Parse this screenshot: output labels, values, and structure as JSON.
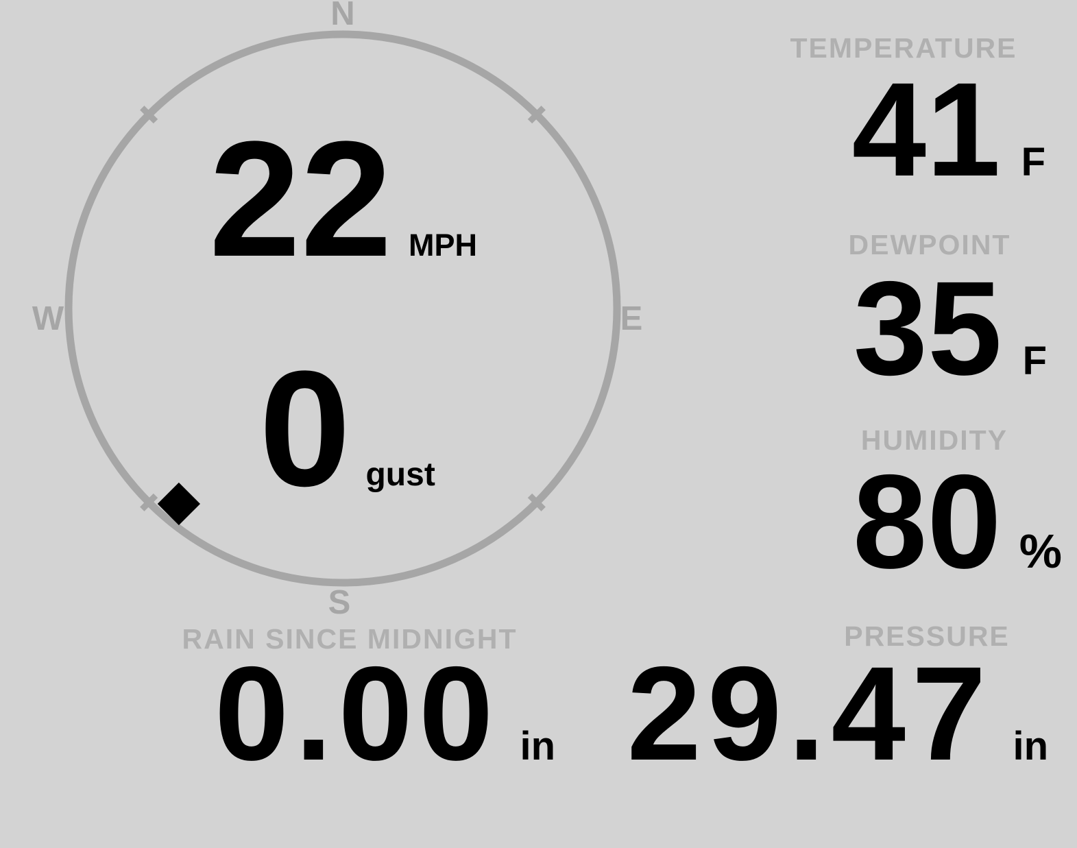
{
  "colors": {
    "background": "#d3d3d3",
    "label": "#b0b0b0",
    "compass": "#a6a6a6",
    "value": "#000000"
  },
  "wind": {
    "speed_value": "22",
    "speed_unit": "MPH",
    "gust_value": "0",
    "gust_unit": "gust",
    "direction_degrees": 220,
    "cardinal_n": "N",
    "cardinal_e": "E",
    "cardinal_s": "S",
    "cardinal_w": "W"
  },
  "metrics": {
    "temperature": {
      "label": "TEMPERATURE",
      "value": "41",
      "unit": "F"
    },
    "dewpoint": {
      "label": "DEWPOINT",
      "value": "35",
      "unit": "F"
    },
    "humidity": {
      "label": "HUMIDITY",
      "value": "80",
      "unit": "%"
    },
    "pressure": {
      "label": "PRESSURE",
      "value": "29.47",
      "unit": "in"
    },
    "rain_since_midnight": {
      "label": "RAIN SINCE MIDNIGHT",
      "value": "0.00",
      "unit": "in"
    }
  }
}
